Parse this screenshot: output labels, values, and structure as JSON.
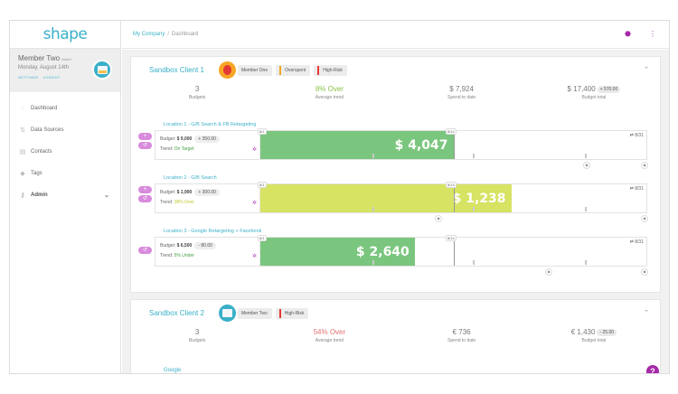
{
  "app": {
    "logo": "shape"
  },
  "user": {
    "name": "Member Two",
    "role": "Admin",
    "date": "Monday, August 14th",
    "settings": "SETTINGS",
    "logout": "LOGOUT"
  },
  "nav": [
    {
      "label": "Dashboard",
      "icon": "dashboard-icon"
    },
    {
      "label": "Data Sources",
      "icon": "data-sources-icon"
    },
    {
      "label": "Contacts",
      "icon": "contacts-icon"
    },
    {
      "label": "Tags",
      "icon": "tag-icon"
    },
    {
      "label": "Admin",
      "icon": "key-icon"
    }
  ],
  "breadcrumb": {
    "company": "My Company",
    "separator": "/",
    "current": "Dashboard"
  },
  "clients": [
    {
      "title": "Sandbox Client 1",
      "member_tag": "Member One",
      "tags": [
        {
          "label": "Overspent",
          "color": "#f5a623"
        },
        {
          "label": "High-Risk",
          "color": "#e53935"
        }
      ],
      "stats": {
        "budgets": {
          "value": "3",
          "label": "Budgets"
        },
        "trend": {
          "value": "8% Over",
          "label": "Average trend",
          "color": "#8bc34a"
        },
        "spend": {
          "value": "$ 7,924",
          "label": "Spend to date"
        },
        "total": {
          "value": "$ 17,400",
          "chip": "+ 570.00",
          "label": "Budget total"
        }
      },
      "locations": [
        {
          "title": "Location 1 - G/B Search & FB Retargeting",
          "budget_label": "Budget:",
          "budget": "$ 9,000",
          "delta": "+ 350.00",
          "trend_label": "Trend:",
          "trend": "On Target",
          "trend_color": "#43a047",
          "amount": "$ 4,047",
          "fill_fraction": 0.5,
          "fill_color": "#7bc67e",
          "start": "8/1",
          "today": "8/14",
          "end": "8/31",
          "controls": [
            "+",
            "↺"
          ]
        },
        {
          "title": "Location 2 - G/B Search",
          "budget_label": "Budget:",
          "budget": "$ 1,900",
          "delta": "+ 300.00",
          "trend_label": "Trend:",
          "trend": "38% Over",
          "trend_color": "#c0ca33",
          "amount": "$ 1,238",
          "fill_fraction": 0.65,
          "fill_color": "#d6e363",
          "start": "8/1",
          "today": "8/14",
          "end": "8/31",
          "controls": [
            "+",
            "↺"
          ]
        },
        {
          "title": "Location 3 - Google Retargeting + Facebook",
          "budget_label": "Budget:",
          "budget": "$ 6,500",
          "delta": "- 80.00",
          "trend_label": "Trend:",
          "trend": "5% Under",
          "trend_color": "#43a047",
          "amount": "$ 2,640",
          "fill_fraction": 0.4,
          "fill_color": "#7bc67e",
          "start": "8/1",
          "today": "8/14",
          "end": "8/31",
          "controls": [
            "↺"
          ]
        }
      ]
    },
    {
      "title": "Sandbox Client 2",
      "member_tag": "Member Two",
      "tags": [
        {
          "label": "High-Risk",
          "color": "#e53935"
        }
      ],
      "stats": {
        "budgets": {
          "value": "3",
          "label": "Budgets"
        },
        "trend": {
          "value": "54% Over",
          "label": "Average trend",
          "color": "#e57373"
        },
        "spend": {
          "value": "€ 736",
          "label": "Spend to date"
        },
        "total": {
          "value": "€ 1,430",
          "chip": "- 25.00",
          "label": "Budget total"
        }
      },
      "first_location": "Google"
    }
  ],
  "colors": {
    "accent": "#3ab0c8",
    "purple": "#a52aa8"
  },
  "help": "?"
}
